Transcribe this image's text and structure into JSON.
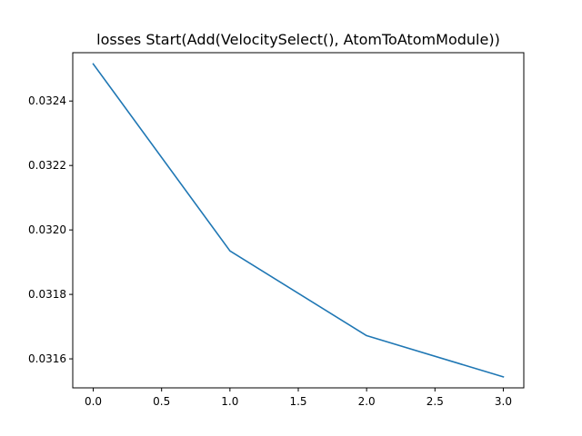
{
  "chart_data": {
    "type": "line",
    "title": "losses Start(Add(VelocitySelect(), AtomToAtomModule))",
    "xlabel": "",
    "ylabel": "",
    "x": [
      0,
      1,
      2,
      3
    ],
    "series": [
      {
        "values": [
          0.032515,
          0.031935,
          0.031672,
          0.031544
        ],
        "color": "#1f77b4"
      }
    ],
    "xlim": [
      -0.15,
      3.15
    ],
    "ylim": [
      0.03151,
      0.03255
    ],
    "xticks": [
      0,
      0.5,
      1,
      1.5,
      2,
      2.5,
      3
    ],
    "xtick_labels": [
      "0.0",
      "0.5",
      "1.0",
      "1.5",
      "2.0",
      "2.5",
      "3.0"
    ],
    "yticks": [
      0.0316,
      0.0318,
      0.032,
      0.0322,
      0.0324
    ],
    "ytick_labels": [
      "0.0316",
      "0.0318",
      "0.0320",
      "0.0322",
      "0.0324"
    ],
    "grid": false,
    "legend": "none"
  }
}
